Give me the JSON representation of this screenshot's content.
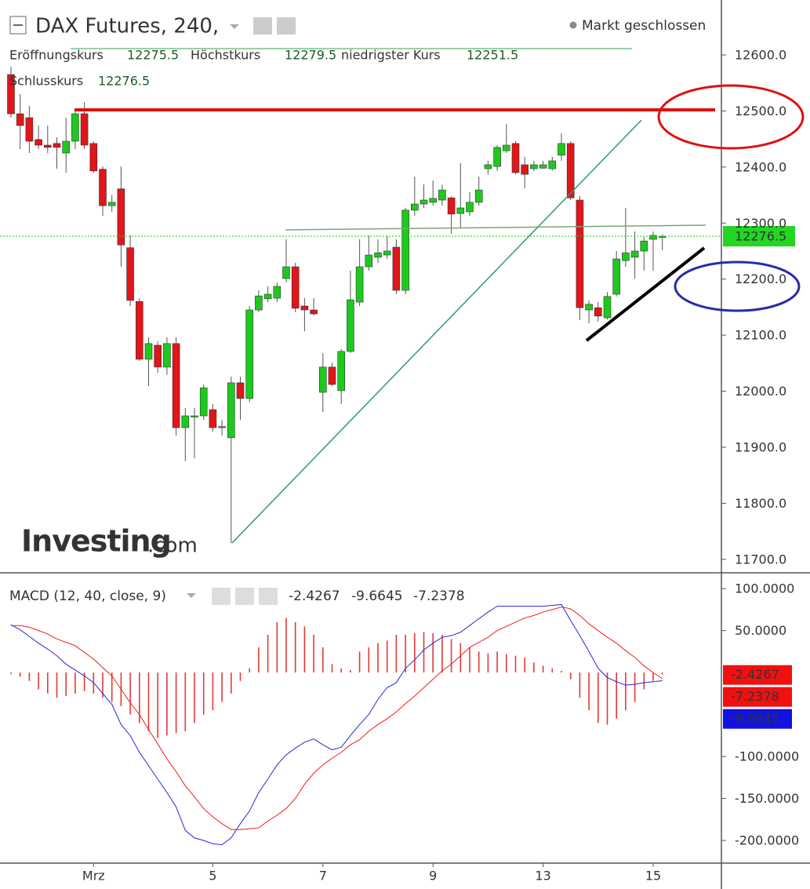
{
  "chart_data": [
    {
      "type": "candlestick",
      "title": "DAX Futures, 240,",
      "status": "Markt geschlossen",
      "ohlc_labels": [
        "Eröffnungskurs",
        "Höchstkurs",
        "niedrigster Kurs",
        "Schlusskurs"
      ],
      "watermark": "Investing",
      "watermark_suffix": ".com",
      "categories": [
        null,
        null,
        null,
        null,
        null,
        null,
        null,
        null,
        null,
        "Mrz",
        null,
        null,
        null,
        null,
        null,
        null,
        null,
        null,
        null,
        null,
        null,
        null,
        "5",
        null,
        null,
        null,
        null,
        null,
        null,
        null,
        null,
        null,
        null,
        null,
        "7",
        null,
        null,
        null,
        null,
        null,
        null,
        null,
        null,
        null,
        null,
        null,
        "9",
        null,
        null,
        null,
        null,
        null,
        null,
        null,
        null,
        null,
        null,
        null,
        "13",
        null,
        null,
        null,
        null,
        null,
        null,
        null,
        null,
        null,
        null,
        null,
        "15",
        null
      ],
      "open": [
        12565,
        12495,
        12488,
        12449,
        12439,
        12442,
        12425,
        12446,
        12495,
        12442,
        12396,
        12331,
        12361,
        12256,
        12160,
        12057,
        12082,
        12043,
        12085,
        11935,
        11954,
        11956,
        11967,
        11935,
        11917,
        12015,
        11987,
        12145,
        12165,
        12166,
        12201,
        12222,
        12152,
        12145,
        11998,
        12043,
        12001,
        12071,
        12159,
        12222,
        12239,
        12243,
        12257,
        12180,
        12323,
        12334,
        12337,
        12341,
        12345,
        12317,
        12320,
        12337,
        12397,
        12401,
        12429,
        12442,
        12404,
        12397,
        12398,
        12397,
        12421,
        12442,
        12341,
        12145,
        12149,
        12131,
        12173,
        12233,
        12239,
        12250,
        12271,
        12275.5
      ],
      "high": [
        12579,
        12530,
        12509,
        12474,
        12474,
        12453,
        12488,
        12502,
        12516,
        12446,
        12401,
        12350,
        12401,
        12278,
        12166,
        12096,
        12089,
        12096,
        12096,
        11970,
        11970,
        12012,
        11977,
        11949,
        12026,
        12026,
        12152,
        12180,
        12187,
        12194,
        12271,
        12229,
        12166,
        12166,
        12068,
        12051,
        12075,
        12215,
        12271,
        12278,
        12271,
        12278,
        12271,
        12327,
        12383,
        12369,
        12376,
        12368,
        12348,
        12407,
        12355,
        12383,
        12411,
        12439,
        12477,
        12446,
        12418,
        12411,
        12411,
        12418,
        12460,
        12446,
        12348,
        12162,
        12159,
        12177,
        12250,
        12327,
        12285,
        12275,
        12285,
        12279.5
      ],
      "low": [
        12488,
        12432,
        12425,
        12432,
        12425,
        12397,
        12390,
        12432,
        12432,
        12390,
        12313,
        12320,
        12222,
        12152,
        12054,
        12009,
        12033,
        12029,
        11921,
        11875,
        11880,
        11949,
        11928,
        11921,
        11729,
        11949,
        11980,
        12141,
        12159,
        12159,
        12194,
        12141,
        12107,
        12135,
        11963,
        12009,
        11977,
        12068,
        12152,
        12215,
        12229,
        12236,
        12173,
        12173,
        12313,
        12327,
        12331,
        12331,
        12281,
        12292,
        12313,
        12331,
        12387,
        12393,
        12425,
        12387,
        12362,
        12393,
        12397,
        12394,
        12411,
        12341,
        12127,
        12121,
        12124,
        12128,
        12169,
        12222,
        12201,
        12215,
        12215,
        12251.5
      ],
      "close": [
        12495,
        12474,
        12446,
        12439,
        12435,
        12435,
        12446,
        12495,
        12439,
        12393,
        12331,
        12337,
        12261,
        12162,
        12057,
        12085,
        12043,
        12085,
        11935,
        11956,
        11956,
        12006,
        11935,
        11937,
        12015,
        11987,
        12145,
        12170,
        12173,
        12187,
        12222,
        12148,
        12145,
        12138,
        12043,
        12012,
        12071,
        12163,
        12222,
        12243,
        12247,
        12250,
        12180,
        12323,
        12334,
        12341,
        12344,
        12359,
        12316,
        12327,
        12337,
        12359,
        12404,
        12435,
        12439,
        12390,
        12387,
        12404,
        12404,
        12411,
        12442,
        12345,
        12149,
        12155,
        12134,
        12169,
        12236,
        12247,
        12250,
        12268,
        12278,
        12276.5
      ],
      "up_color": "#1ec91e",
      "down_color": "#e0161b",
      "last_color": "#22d622",
      "ylim": [
        11676,
        12698
      ],
      "yticks": [
        {
          "value": 12600,
          "label": "12600.0"
        },
        {
          "value": 12500,
          "label": "12500.0"
        },
        {
          "value": 12400,
          "label": "12400.0"
        },
        {
          "value": 12300,
          "label": "12300.0"
        },
        {
          "value": 12200,
          "label": "12200.0"
        },
        {
          "value": 12100,
          "label": "12100.0"
        },
        {
          "value": 12000,
          "label": "12000.0"
        },
        {
          "value": 11900,
          "label": "11900.0"
        },
        {
          "value": 11800,
          "label": "11800.0"
        },
        {
          "value": 11700,
          "label": "11700.0"
        }
      ]
    },
    {
      "type": "macd",
      "title": "MACD (12, 40, close, 9)",
      "series": [
        {
          "color": "#e53935",
          "style": "histogram",
          "values": [
            -2,
            -5,
            -10,
            -20,
            -25,
            -30,
            -28,
            -25,
            -22,
            -25,
            -30,
            -35,
            -40,
            -50,
            -60,
            -70,
            -78,
            -75,
            -72,
            -70,
            -60,
            -50,
            -45,
            -35,
            -25,
            -10,
            5,
            30,
            45,
            60,
            65,
            60,
            55,
            45,
            30,
            10,
            5,
            3,
            25,
            30,
            35,
            38,
            45,
            45,
            47,
            48,
            47,
            45,
            40,
            35,
            30,
            25,
            23,
            25,
            22,
            20,
            18,
            12,
            8,
            5,
            2,
            -8,
            -30,
            -45,
            -60,
            -62,
            -55,
            -45,
            -35,
            -20,
            -10,
            -2.4267
          ]
        },
        {
          "color": "#2727d6",
          "style": "line",
          "values": [
            57,
            51,
            43,
            35,
            28,
            20,
            10,
            3,
            -4,
            -12,
            -25,
            -38,
            -62,
            -75,
            -95,
            -111,
            -127,
            -143,
            -160,
            -188,
            -197,
            -200,
            -204,
            -205,
            -197,
            -180,
            -165,
            -143,
            -127,
            -110,
            -98,
            -90,
            -83,
            -79,
            -86,
            -92,
            -89,
            -75,
            -62,
            -50,
            -32,
            -18,
            -12,
            5,
            15,
            27,
            35,
            42,
            44,
            48,
            56,
            64,
            72,
            79,
            79,
            79,
            79,
            79,
            79,
            80,
            81,
            62,
            44,
            25,
            5,
            -6,
            -11,
            -15,
            -14,
            -12,
            -11,
            -9.6645
          ]
        },
        {
          "color": "#f01c1c",
          "style": "line",
          "values": [
            56,
            56,
            54,
            50,
            46,
            40,
            36,
            32,
            24,
            16,
            6,
            -4,
            -20,
            -36,
            -50,
            -68,
            -85,
            -103,
            -118,
            -135,
            -148,
            -162,
            -172,
            -180,
            -187,
            -187,
            -186,
            -185,
            -177,
            -170,
            -162,
            -150,
            -133,
            -120,
            -110,
            -102,
            -95,
            -86,
            -80,
            -70,
            -62,
            -55,
            -47,
            -37,
            -28,
            -18,
            -8,
            2,
            10,
            20,
            30,
            36,
            42,
            50,
            55,
            60,
            65,
            68,
            72,
            75,
            78,
            76,
            68,
            58,
            50,
            42,
            35,
            26,
            18,
            8,
            0,
            -7.2378
          ]
        }
      ],
      "ylim": [
        -227,
        116
      ],
      "yticks": [
        {
          "value": 100,
          "label": "100.0000"
        },
        {
          "value": 50,
          "label": "50.0000"
        },
        {
          "value": -100,
          "label": "-100.0000"
        },
        {
          "value": -150,
          "label": "-150.0000"
        },
        {
          "value": -200,
          "label": "-200.0000"
        }
      ]
    }
  ]
}
